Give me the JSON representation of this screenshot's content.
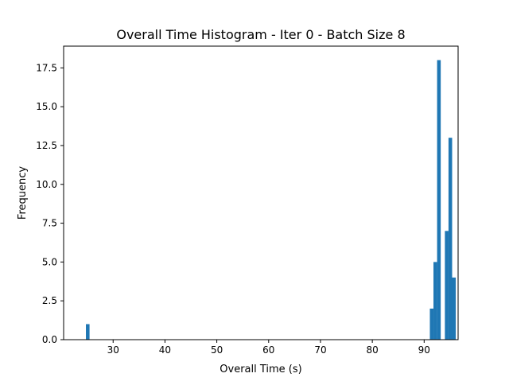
{
  "chart_data": {
    "type": "bar",
    "title": "Overall Time Histogram - Iter 0 - Batch Size 8",
    "xlabel": "Overall Time (s)",
    "ylabel": "Frequency",
    "xlim": [
      20.45,
      96.55
    ],
    "ylim": [
      0,
      18.9
    ],
    "xticks": [
      30,
      40,
      50,
      60,
      70,
      80,
      90
    ],
    "yticks": [
      0,
      2.5,
      5,
      7.5,
      10,
      12.5,
      15,
      17.5
    ],
    "ytick_labels": [
      "0.0",
      "2.5",
      "5.0",
      "7.5",
      "10.0",
      "12.5",
      "15.0",
      "17.5"
    ],
    "grid": false,
    "bar_color": "#1f77b4",
    "bins": [
      {
        "x0": 24.75,
        "x1": 25.45,
        "value": 1
      },
      {
        "x0": 91.1,
        "x1": 91.8,
        "value": 2
      },
      {
        "x0": 91.8,
        "x1": 92.5,
        "value": 5
      },
      {
        "x0": 92.5,
        "x1": 93.2,
        "value": 18
      },
      {
        "x0": 94.0,
        "x1": 94.7,
        "value": 7
      },
      {
        "x0": 94.7,
        "x1": 95.4,
        "value": 13
      },
      {
        "x0": 95.4,
        "x1": 96.1,
        "value": 4
      }
    ]
  }
}
